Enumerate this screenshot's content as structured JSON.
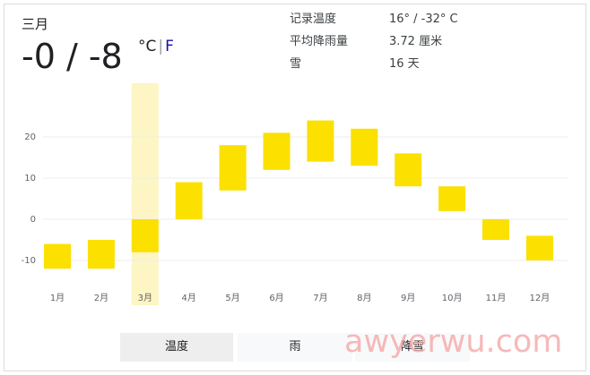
{
  "header": {
    "month": "三月",
    "temp_display": "-0 / -8",
    "unit_c": "°C",
    "unit_sep": "|",
    "unit_f": "F"
  },
  "stats": [
    {
      "label": "记录温度",
      "value": "16° / -32° C"
    },
    {
      "label": "平均降雨量",
      "value": "3.72 厘米"
    },
    {
      "label": "雪",
      "value": "16 天"
    }
  ],
  "tabs": [
    {
      "label": "温度",
      "active": true
    },
    {
      "label": "雨",
      "active": false
    },
    {
      "label": "降雪",
      "active": false
    }
  ],
  "watermark": "awyerwu.com",
  "colors": {
    "bar": "#fbe000",
    "highlight": "#fdf5c3",
    "grid": "#eeeeee"
  },
  "chart_data": {
    "type": "bar",
    "categories": [
      "1月",
      "2月",
      "3月",
      "4月",
      "5月",
      "6月",
      "7月",
      "8月",
      "9月",
      "10月",
      "11月",
      "12月"
    ],
    "series": [
      {
        "values": [
          [
            -12,
            -6
          ],
          [
            -12,
            -5
          ],
          [
            -8,
            0
          ],
          [
            0,
            9
          ],
          [
            7,
            18
          ],
          [
            12,
            21
          ],
          [
            14,
            24
          ],
          [
            13,
            22
          ],
          [
            8,
            16
          ],
          [
            2,
            8
          ],
          [
            -5,
            0
          ],
          [
            -10,
            -4
          ]
        ]
      }
    ],
    "ylim": [
      -14,
      26
    ],
    "yticks": [
      20,
      10,
      0,
      -10
    ],
    "selected_index": 2,
    "grid": true
  }
}
